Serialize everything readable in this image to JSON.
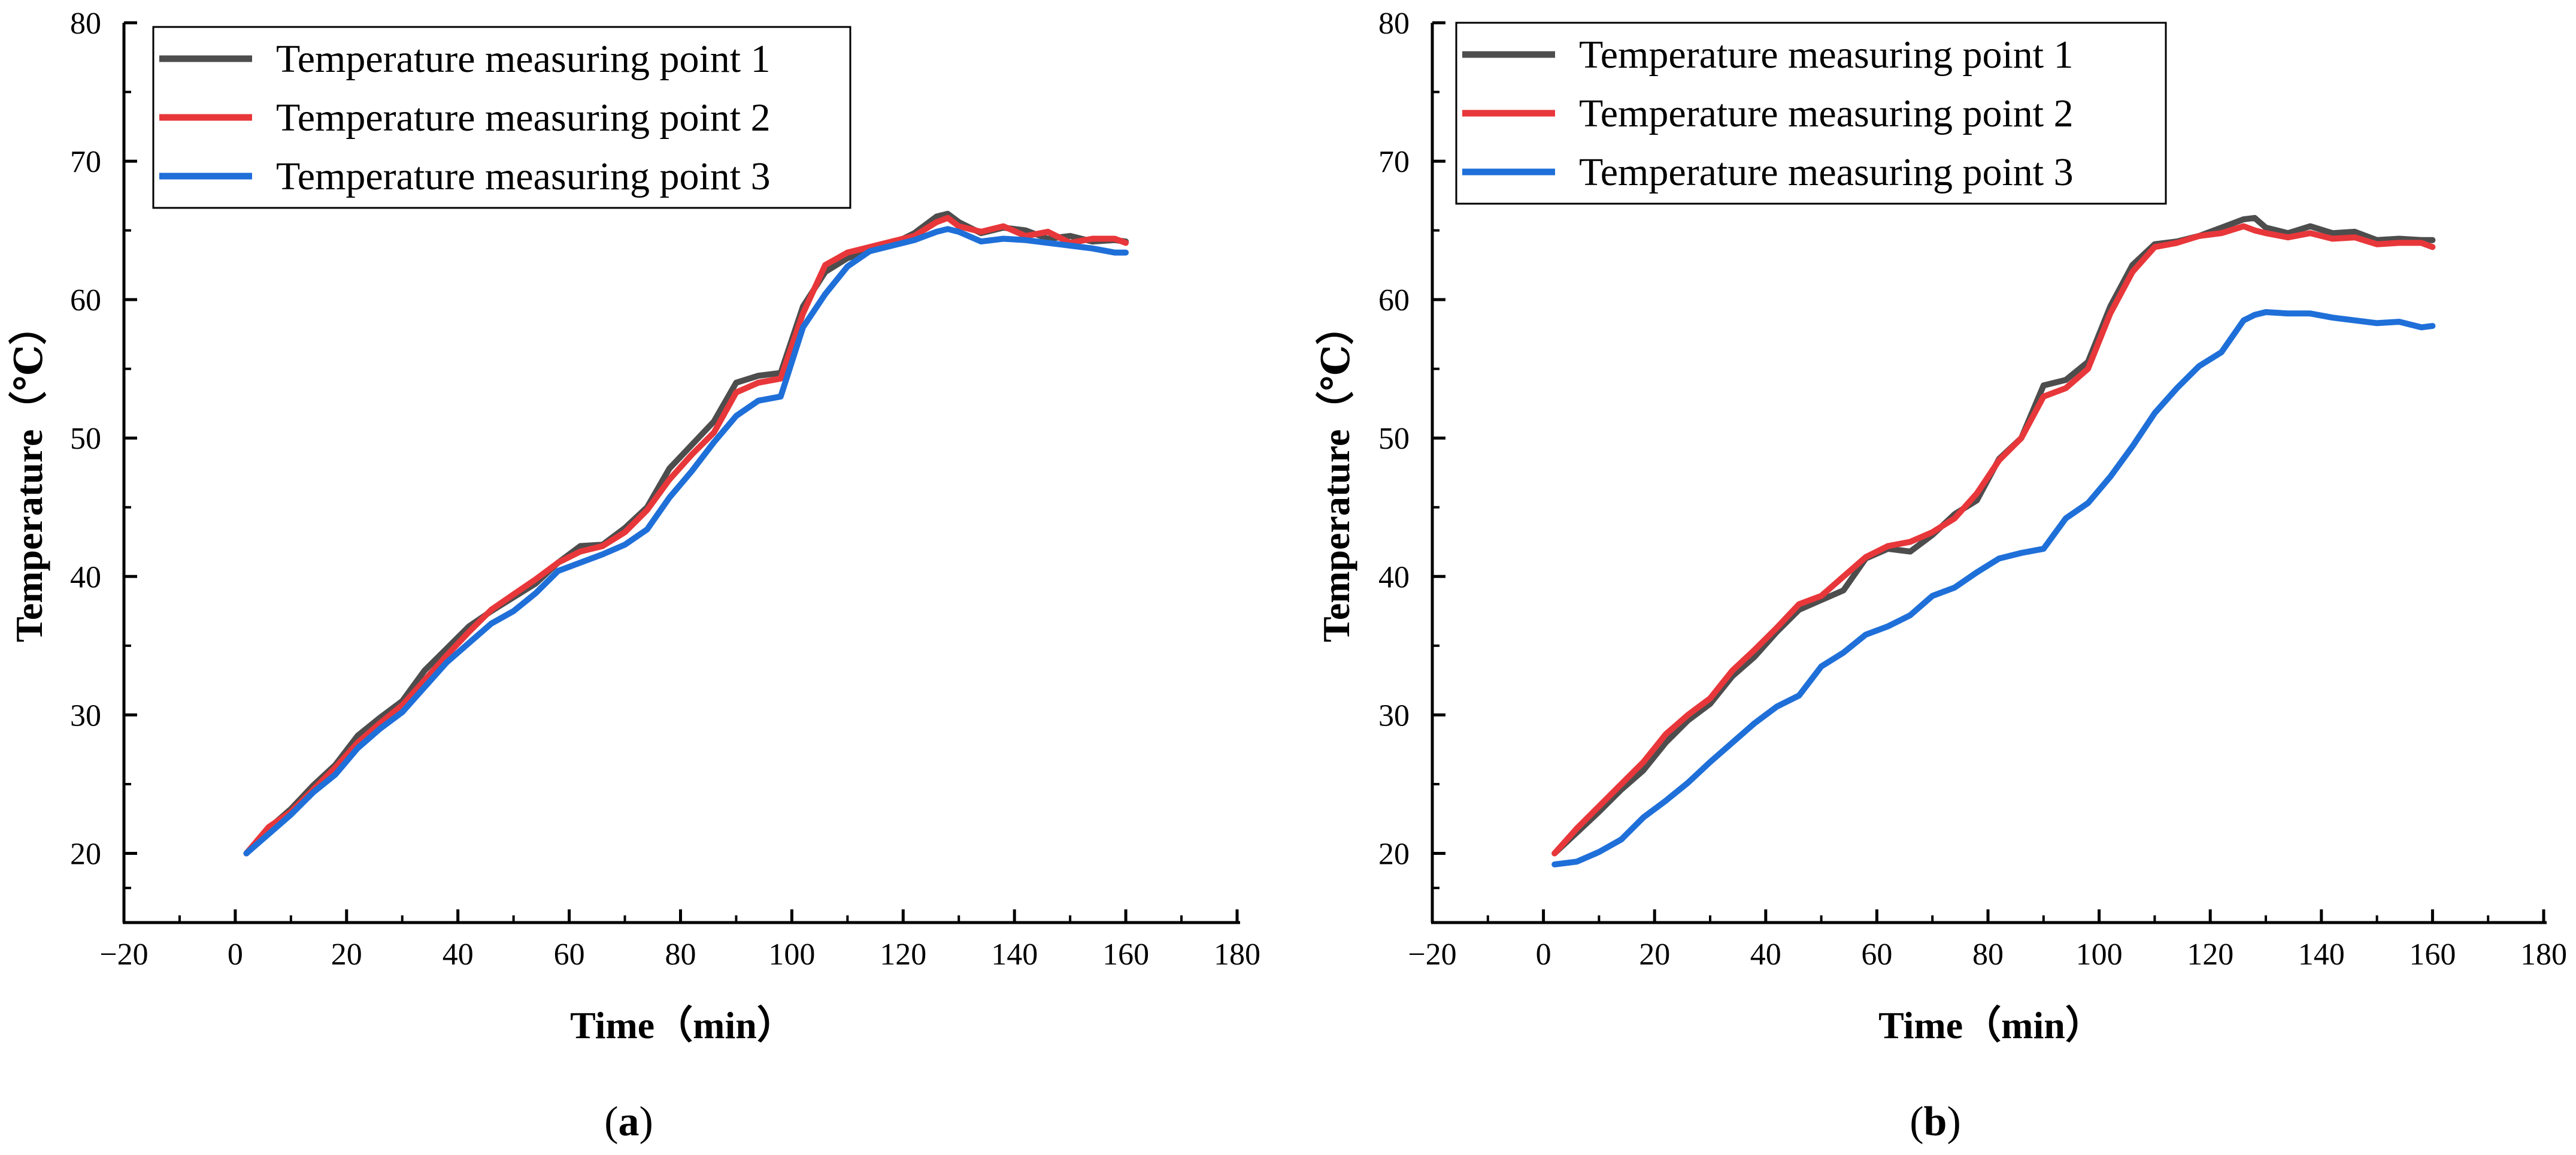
{
  "chart_data": [
    {
      "type": "line",
      "panel_caption": {
        "open": "(",
        "letter": "a",
        "close": ")"
      },
      "xlabel": "Time（min）",
      "ylabel": "Temperature（℃）",
      "xlim": [
        -20,
        180
      ],
      "ylim": [
        15,
        80
      ],
      "xticks": [
        -20,
        0,
        20,
        40,
        60,
        80,
        100,
        120,
        140,
        160,
        180
      ],
      "xtick_labels": [
        "−20",
        "0",
        "20",
        "40",
        "60",
        "80",
        "100",
        "120",
        "140",
        "160",
        "180"
      ],
      "yticks": [
        20,
        30,
        40,
        50,
        60,
        70,
        80
      ],
      "ytick_labels": [
        "20",
        "30",
        "40",
        "50",
        "60",
        "70",
        "80"
      ],
      "legend_position": "top-left",
      "series": [
        {
          "name": "Temperature measuring point 1",
          "color": "#4d4d4d",
          "x": [
            2,
            6,
            10,
            14,
            18,
            22,
            26,
            30,
            34,
            38,
            42,
            46,
            50,
            54,
            58,
            62,
            66,
            70,
            74,
            78,
            82,
            86,
            90,
            94,
            98,
            102,
            106,
            110,
            114,
            118,
            122,
            126,
            128,
            130,
            134,
            138,
            142,
            146,
            150,
            154,
            158,
            160
          ],
          "y": [
            20,
            21.8,
            23.2,
            24.9,
            26.4,
            28.5,
            29.8,
            31,
            33.2,
            34.8,
            36.4,
            37.5,
            38.5,
            39.5,
            41,
            42.2,
            42.3,
            43.5,
            45,
            47.8,
            49.5,
            51.2,
            54,
            54.5,
            54.7,
            59.5,
            62,
            63,
            63.5,
            64,
            64.8,
            66,
            66.2,
            65.6,
            64.8,
            65.2,
            65,
            64.4,
            64.6,
            64.2,
            64.3,
            64.2
          ]
        },
        {
          "name": "Temperature measuring point 2",
          "color": "#e8373a",
          "x": [
            2,
            6,
            10,
            14,
            18,
            22,
            26,
            30,
            34,
            38,
            42,
            46,
            50,
            54,
            58,
            62,
            66,
            70,
            74,
            78,
            82,
            86,
            90,
            94,
            98,
            102,
            106,
            110,
            114,
            118,
            122,
            126,
            128,
            130,
            134,
            138,
            142,
            146,
            150,
            154,
            158,
            160
          ],
          "y": [
            20,
            21.9,
            23,
            24.6,
            26.2,
            28,
            29.4,
            30.7,
            32.5,
            34.3,
            36,
            37.6,
            38.7,
            39.8,
            41,
            41.8,
            42.2,
            43.2,
            44.8,
            47,
            48.8,
            50.4,
            53.3,
            54,
            54.3,
            59,
            62.5,
            63.4,
            63.8,
            64.2,
            64.6,
            65.6,
            65.9,
            65.3,
            64.9,
            65.3,
            64.6,
            64.9,
            64.1,
            64.4,
            64.4,
            64.1
          ]
        },
        {
          "name": "Temperature measuring point 3",
          "color": "#1f6fd9",
          "x": [
            2,
            6,
            10,
            14,
            18,
            22,
            26,
            30,
            34,
            38,
            42,
            46,
            50,
            54,
            58,
            62,
            66,
            70,
            74,
            78,
            82,
            86,
            90,
            94,
            98,
            102,
            106,
            110,
            114,
            118,
            122,
            126,
            128,
            130,
            134,
            138,
            142,
            146,
            150,
            154,
            158,
            160
          ],
          "y": [
            20,
            21.4,
            22.8,
            24.4,
            25.7,
            27.6,
            29,
            30.2,
            32,
            33.8,
            35.2,
            36.6,
            37.5,
            38.8,
            40.4,
            41,
            41.6,
            42.3,
            43.4,
            45.7,
            47.6,
            49.7,
            51.6,
            52.7,
            53,
            58,
            60.4,
            62.4,
            63.5,
            63.9,
            64.3,
            64.9,
            65.1,
            64.9,
            64.2,
            64.4,
            64.3,
            64.1,
            63.9,
            63.7,
            63.4,
            63.4
          ]
        }
      ]
    },
    {
      "type": "line",
      "panel_caption": {
        "open": "(",
        "letter": "b",
        "close": ")"
      },
      "xlabel": "Time（min）",
      "ylabel": "Temperature（℃）",
      "xlim": [
        -20,
        180
      ],
      "ylim": [
        15,
        80
      ],
      "xticks": [
        -20,
        0,
        20,
        40,
        60,
        80,
        100,
        120,
        140,
        160,
        180
      ],
      "xtick_labels": [
        "−20",
        "0",
        "20",
        "40",
        "60",
        "80",
        "100",
        "120",
        "140",
        "160",
        "180"
      ],
      "yticks": [
        20,
        30,
        40,
        50,
        60,
        70,
        80
      ],
      "ytick_labels": [
        "20",
        "30",
        "40",
        "50",
        "60",
        "70",
        "80"
      ],
      "legend_position": "top-left",
      "series": [
        {
          "name": "Temperature measuring point 1",
          "color": "#4d4d4d",
          "x": [
            2,
            6,
            10,
            14,
            18,
            22,
            26,
            30,
            34,
            38,
            42,
            46,
            50,
            54,
            58,
            62,
            66,
            70,
            74,
            78,
            82,
            86,
            90,
            94,
            98,
            102,
            106,
            110,
            114,
            118,
            122,
            126,
            128,
            130,
            134,
            138,
            142,
            146,
            150,
            154,
            158,
            160
          ],
          "y": [
            20,
            21.5,
            23,
            24.6,
            26,
            28,
            29.6,
            30.8,
            32.8,
            34.2,
            36,
            37.6,
            38.3,
            39,
            41.3,
            42,
            41.8,
            43,
            44.5,
            45.5,
            48.5,
            50,
            53.8,
            54.2,
            55.5,
            59.5,
            62.5,
            64,
            64.2,
            64.6,
            65.2,
            65.8,
            65.9,
            65.2,
            64.8,
            65.3,
            64.8,
            64.9,
            64.3,
            64.4,
            64.3,
            64.3
          ]
        },
        {
          "name": "Temperature measuring point 2",
          "color": "#e8373a",
          "x": [
            2,
            6,
            10,
            14,
            18,
            22,
            26,
            30,
            34,
            38,
            42,
            46,
            50,
            54,
            58,
            62,
            66,
            70,
            74,
            78,
            82,
            86,
            90,
            94,
            98,
            102,
            106,
            110,
            114,
            118,
            122,
            126,
            128,
            130,
            134,
            138,
            142,
            146,
            150,
            154,
            158,
            160
          ],
          "y": [
            20,
            21.8,
            23.4,
            25,
            26.6,
            28.6,
            30,
            31.2,
            33.2,
            34.7,
            36.3,
            38,
            38.6,
            40,
            41.4,
            42.2,
            42.5,
            43.2,
            44.2,
            46,
            48.4,
            50,
            53,
            53.6,
            55,
            59,
            62,
            63.8,
            64.1,
            64.6,
            64.8,
            65.3,
            65,
            64.8,
            64.5,
            64.8,
            64.4,
            64.5,
            64,
            64.1,
            64.1,
            63.8
          ]
        },
        {
          "name": "Temperature measuring point 3",
          "color": "#1f6fd9",
          "x": [
            2,
            6,
            10,
            14,
            18,
            22,
            26,
            30,
            34,
            38,
            42,
            46,
            50,
            54,
            58,
            62,
            66,
            70,
            74,
            78,
            82,
            86,
            90,
            94,
            98,
            102,
            106,
            110,
            114,
            118,
            122,
            126,
            128,
            130,
            134,
            138,
            142,
            146,
            150,
            154,
            158,
            160
          ],
          "y": [
            19.2,
            19.4,
            20.1,
            21,
            22.6,
            23.8,
            25.1,
            26.6,
            28,
            29.4,
            30.6,
            31.4,
            33.5,
            34.5,
            35.8,
            36.4,
            37.2,
            38.6,
            39.2,
            40.3,
            41.3,
            41.7,
            42,
            44.2,
            45.3,
            47.2,
            49.4,
            51.8,
            53.6,
            55.2,
            56.2,
            58.5,
            58.9,
            59.1,
            59,
            59,
            58.7,
            58.5,
            58.3,
            58.4,
            58,
            58.1
          ]
        }
      ]
    }
  ]
}
